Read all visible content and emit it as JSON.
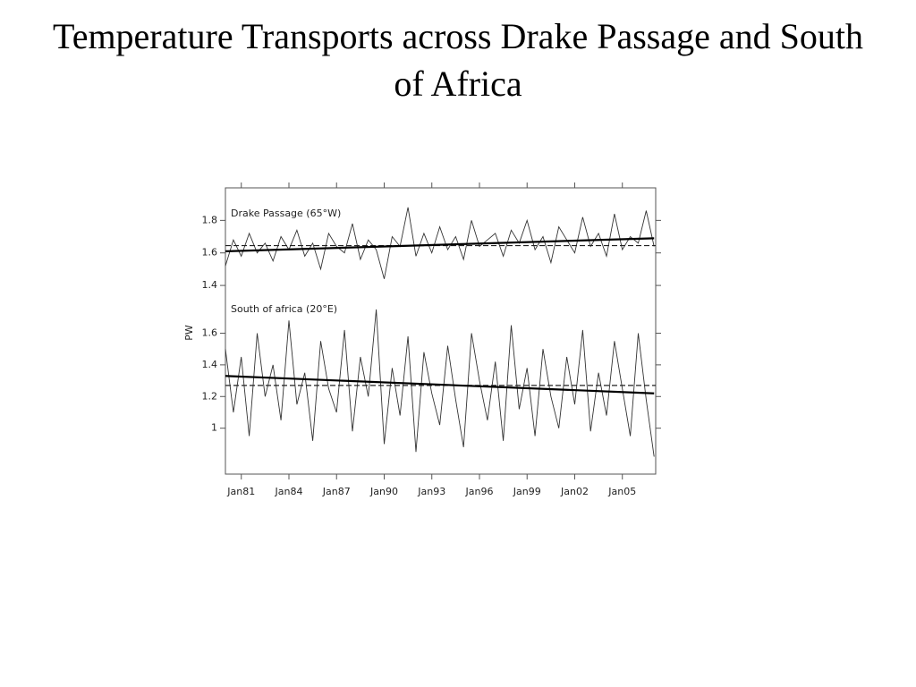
{
  "title": "Temperature Transports across Drake Passage and South of Africa",
  "ylabel": "PW",
  "chart_data": [
    {
      "type": "line",
      "label": "Drake Passage (65°W)",
      "color": "#333333",
      "x": [
        1980,
        1980.5,
        1981,
        1981.5,
        1982,
        1982.5,
        1983,
        1983.5,
        1984,
        1984.5,
        1985,
        1985.5,
        1986,
        1986.5,
        1987,
        1987.5,
        1988,
        1988.5,
        1989,
        1989.5,
        1990,
        1990.5,
        1991,
        1991.5,
        1992,
        1992.5,
        1993,
        1993.5,
        1994,
        1994.5,
        1995,
        1995.5,
        1996,
        1996.5,
        1997,
        1997.5,
        1998,
        1998.5,
        1999,
        1999.5,
        2000,
        2000.5,
        2001,
        2001.5,
        2002,
        2002.5,
        2003,
        2003.5,
        2004,
        2004.5,
        2005,
        2005.5,
        2006,
        2006.5,
        2007
      ],
      "values": [
        1.52,
        1.68,
        1.58,
        1.72,
        1.6,
        1.66,
        1.55,
        1.7,
        1.62,
        1.74,
        1.58,
        1.66,
        1.5,
        1.72,
        1.64,
        1.6,
        1.78,
        1.56,
        1.68,
        1.62,
        1.44,
        1.7,
        1.64,
        1.88,
        1.58,
        1.72,
        1.6,
        1.76,
        1.62,
        1.7,
        1.56,
        1.8,
        1.64,
        1.68,
        1.72,
        1.58,
        1.74,
        1.66,
        1.8,
        1.62,
        1.7,
        1.54,
        1.76,
        1.68,
        1.6,
        1.82,
        1.64,
        1.72,
        1.58,
        1.84,
        1.62,
        1.7,
        1.66,
        1.86,
        1.64
      ],
      "trend": {
        "x": [
          1980,
          2007
        ],
        "values": [
          1.61,
          1.69
        ]
      },
      "mean": 1.645,
      "xlim": [
        1980,
        2007.1
      ],
      "ylim": [
        1.34,
        2.0
      ],
      "yticks": [
        1.4,
        1.6,
        1.8
      ]
    },
    {
      "type": "line",
      "label": "South of africa (20°E)",
      "color": "#333333",
      "x": [
        1980,
        1980.5,
        1981,
        1981.5,
        1982,
        1982.5,
        1983,
        1983.5,
        1984,
        1984.5,
        1985,
        1985.5,
        1986,
        1986.5,
        1987,
        1987.5,
        1988,
        1988.5,
        1989,
        1989.5,
        1990,
        1990.5,
        1991,
        1991.5,
        1992,
        1992.5,
        1993,
        1993.5,
        1994,
        1994.5,
        1995,
        1995.5,
        1996,
        1996.5,
        1997,
        1997.5,
        1998,
        1998.5,
        1999,
        1999.5,
        2000,
        2000.5,
        2001,
        2001.5,
        2002,
        2002.5,
        2003,
        2003.5,
        2004,
        2004.5,
        2005,
        2005.5,
        2006,
        2006.5,
        2007
      ],
      "values": [
        1.5,
        1.1,
        1.45,
        0.95,
        1.6,
        1.2,
        1.4,
        1.05,
        1.68,
        1.15,
        1.35,
        0.92,
        1.55,
        1.25,
        1.1,
        1.62,
        0.98,
        1.45,
        1.2,
        1.75,
        0.9,
        1.38,
        1.08,
        1.58,
        0.85,
        1.48,
        1.22,
        1.02,
        1.52,
        1.18,
        0.88,
        1.6,
        1.3,
        1.05,
        1.42,
        0.92,
        1.65,
        1.12,
        1.38,
        0.95,
        1.5,
        1.2,
        1.0,
        1.45,
        1.15,
        1.62,
        0.98,
        1.35,
        1.08,
        1.55,
        1.25,
        0.95,
        1.6,
        1.18,
        0.82
      ],
      "trend": {
        "x": [
          1980,
          2007
        ],
        "values": [
          1.33,
          1.22
        ]
      },
      "mean": 1.27,
      "xlim": [
        1980,
        2007.1
      ],
      "ylim": [
        0.71,
        1.84
      ],
      "yticks": [
        1,
        1.2,
        1.4,
        1.6
      ],
      "xticks": [
        {
          "value": 1981,
          "label": "Jan81"
        },
        {
          "value": 1984,
          "label": "Jan84"
        },
        {
          "value": 1987,
          "label": "Jan87"
        },
        {
          "value": 1990,
          "label": "Jan90"
        },
        {
          "value": 1993,
          "label": "Jan93"
        },
        {
          "value": 1996,
          "label": "Jan96"
        },
        {
          "value": 1999,
          "label": "Jan99"
        },
        {
          "value": 2002,
          "label": "Jan02"
        },
        {
          "value": 2005,
          "label": "Jan05"
        }
      ]
    }
  ]
}
